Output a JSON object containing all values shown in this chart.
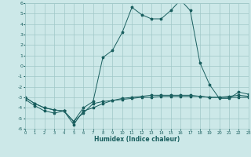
{
  "xlabel": "Humidex (Indice chaleur)",
  "x": [
    0,
    1,
    2,
    3,
    4,
    5,
    6,
    7,
    8,
    9,
    10,
    11,
    12,
    13,
    14,
    15,
    16,
    17,
    18,
    19,
    20,
    21,
    22,
    23
  ],
  "line1": [
    -3.0,
    -3.6,
    -4.0,
    -4.2,
    -4.3,
    -5.3,
    -4.5,
    -3.6,
    -3.4,
    -3.3,
    -3.2,
    -3.1,
    -3.0,
    -3.0,
    -2.9,
    -2.9,
    -2.9,
    -2.9,
    -2.9,
    -3.0,
    -3.0,
    -3.0,
    -3.0,
    -3.0
  ],
  "line2": [
    -3.2,
    -3.8,
    -4.3,
    -4.5,
    -4.3,
    -5.6,
    -4.3,
    -4.0,
    -3.6,
    -3.3,
    -3.1,
    -3.0,
    -2.9,
    -2.8,
    -2.8,
    -2.8,
    -2.8,
    -2.8,
    -2.9,
    -3.0,
    -3.0,
    -2.9,
    -2.8,
    -2.9
  ],
  "line3": [
    -3.0,
    -3.6,
    -4.0,
    -4.2,
    -4.3,
    -5.3,
    -4.0,
    -3.4,
    0.8,
    1.5,
    3.2,
    5.6,
    4.9,
    4.5,
    4.5,
    5.3,
    6.3,
    5.3,
    0.3,
    -1.8,
    -3.1,
    -3.1,
    -2.5,
    -2.7
  ],
  "bg_color": "#cce8e8",
  "grid_color": "#a0c8c8",
  "line_color": "#1a5f5f",
  "ylim": [
    -6,
    6
  ],
  "xlim": [
    0,
    23
  ],
  "yticks": [
    -6,
    -5,
    -4,
    -3,
    -2,
    -1,
    0,
    1,
    2,
    3,
    4,
    5,
    6
  ],
  "xticks": [
    0,
    1,
    2,
    3,
    4,
    5,
    6,
    7,
    8,
    9,
    10,
    11,
    12,
    13,
    14,
    15,
    16,
    17,
    18,
    19,
    20,
    21,
    22,
    23
  ]
}
